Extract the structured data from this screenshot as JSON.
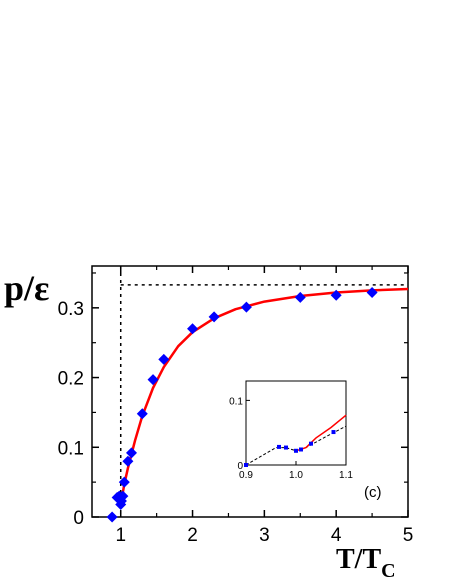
{
  "chart_data": [
    {
      "type": "scatter",
      "panel_label": "(c)",
      "ylabel_main": "p/ε",
      "xlabel_main": "T/T",
      "xlabel_sub": "C",
      "xlim": [
        0.6,
        5
      ],
      "ylim": [
        0,
        0.36
      ],
      "x_ticks": [
        "1",
        "2",
        "3",
        "4",
        "5"
      ],
      "y_ticks": [
        "0",
        "0.1",
        "0.2",
        "0.3"
      ],
      "reference_lines": {
        "vertical_x": 1.0,
        "horizontal_y": 0.333
      },
      "colors": {
        "curve": "#ff0000",
        "markers": "#0000ff",
        "reference": "#000000"
      },
      "series": [
        {
          "marker": "diamond",
          "points": [
            [
              0.88,
              0.0
            ],
            [
              0.95,
              0.028
            ],
            [
              0.98,
              0.03
            ],
            [
              1.0,
              0.018
            ],
            [
              1.01,
              0.023
            ],
            [
              1.03,
              0.03
            ],
            [
              1.05,
              0.05
            ],
            [
              1.1,
              0.08
            ],
            [
              1.15,
              0.092
            ],
            [
              1.3,
              0.148
            ],
            [
              1.45,
              0.197
            ],
            [
              1.6,
              0.226
            ],
            [
              2.0,
              0.27
            ],
            [
              2.3,
              0.287
            ],
            [
              2.75,
              0.301
            ],
            [
              3.5,
              0.315
            ],
            [
              4.0,
              0.318
            ],
            [
              4.5,
              0.322
            ]
          ]
        },
        {
          "line": "solid",
          "points": [
            [
              1.0,
              0.022
            ],
            [
              1.02,
              0.03
            ],
            [
              1.05,
              0.047
            ],
            [
              1.1,
              0.07
            ],
            [
              1.2,
              0.11
            ],
            [
              1.3,
              0.145
            ],
            [
              1.45,
              0.185
            ],
            [
              1.6,
              0.215
            ],
            [
              1.8,
              0.245
            ],
            [
              2.0,
              0.265
            ],
            [
              2.3,
              0.285
            ],
            [
              2.6,
              0.298
            ],
            [
              3.0,
              0.309
            ],
            [
              3.5,
              0.317
            ],
            [
              4.0,
              0.322
            ],
            [
              4.5,
              0.325
            ],
            [
              5.0,
              0.327
            ]
          ]
        }
      ]
    },
    {
      "type": "line",
      "xlim": [
        0.9,
        1.1
      ],
      "ylim": [
        0,
        0.13
      ],
      "x_ticks": [
        "0.9",
        "1.0",
        "1.1"
      ],
      "y_ticks": [
        "0",
        "0.1"
      ],
      "colors": {
        "curve": "#ff0000",
        "markers": "#0000ff",
        "dashed": "#000000"
      },
      "series": [
        {
          "marker": "square",
          "points": [
            [
              0.9,
              0.0
            ],
            [
              0.966,
              0.028
            ],
            [
              0.98,
              0.027
            ],
            [
              1.0,
              0.022
            ],
            [
              1.01,
              0.024
            ],
            [
              1.03,
              0.033
            ],
            [
              1.075,
              0.051
            ]
          ]
        },
        {
          "line": "dashed",
          "points": [
            [
              0.9,
              0.0
            ],
            [
              0.96,
              0.027
            ],
            [
              0.98,
              0.027
            ],
            [
              1.0,
              0.022
            ],
            [
              1.02,
              0.027
            ],
            [
              1.06,
              0.044
            ],
            [
              1.1,
              0.06
            ]
          ]
        },
        {
          "line": "solid",
          "points": [
            [
              1.0,
              0.022
            ],
            [
              1.02,
              0.027
            ],
            [
              1.04,
              0.042
            ],
            [
              1.07,
              0.058
            ],
            [
              1.1,
              0.077
            ]
          ]
        }
      ]
    }
  ]
}
